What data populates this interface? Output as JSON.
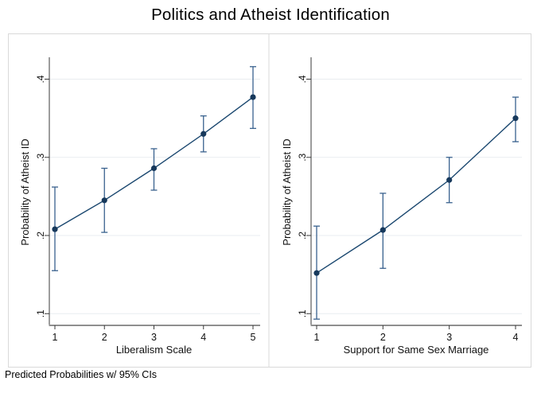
{
  "chart_data": {
    "type": "line",
    "title": "Politics and Atheist Identification",
    "note": "Predicted Probabilities w/ 95% CIs",
    "ylabel": "Probability of Atheist ID",
    "ylim": [
      0.085,
      0.428
    ],
    "y_ticks": [
      0.1,
      0.2,
      0.3,
      0.4
    ],
    "y_tick_labels": [
      ".1",
      ".2",
      ".3",
      ".4"
    ],
    "grid": "horizontal light gridlines at y ticks",
    "legend": "none",
    "series_note": "point estimates with 95% confidence interval capped error bars, connected by line",
    "panels": [
      {
        "xlabel": "Liberalism Scale",
        "x": [
          1,
          2,
          3,
          4,
          5
        ],
        "x_tick_labels": [
          "1",
          "2",
          "3",
          "4",
          "5"
        ],
        "estimates": [
          0.208,
          0.245,
          0.286,
          0.33,
          0.377
        ],
        "ci_low": [
          0.155,
          0.204,
          0.258,
          0.307,
          0.337
        ],
        "ci_high": [
          0.262,
          0.286,
          0.311,
          0.353,
          0.416
        ]
      },
      {
        "xlabel": "Support for Same Sex Marriage",
        "x": [
          1,
          2,
          3,
          4
        ],
        "x_tick_labels": [
          "1",
          "2",
          "3",
          "4"
        ],
        "estimates": [
          0.152,
          0.207,
          0.271,
          0.35
        ],
        "ci_low": [
          0.093,
          0.158,
          0.242,
          0.32
        ],
        "ci_high": [
          0.212,
          0.254,
          0.3,
          0.377
        ]
      }
    ],
    "colors": {
      "line": "#1a476f",
      "marker": "#17395c",
      "ci": "#39618e",
      "grid": "#e9edf0",
      "axis_y": "#3a3a3a",
      "axis_x": "#8f8f8f",
      "tick_text": "#111111",
      "border": "#d9d9d9",
      "background": "#ffffff"
    }
  }
}
